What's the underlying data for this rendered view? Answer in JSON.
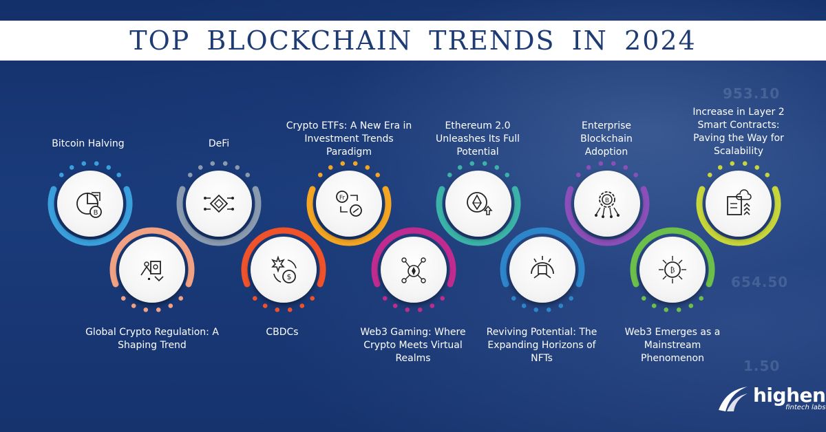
{
  "title": "TOP BLOCKCHAIN TRENDS IN 2024",
  "background_numbers": [
    "953.10",
    "654.50",
    "1.50"
  ],
  "trends": [
    {
      "label": "Bitcoin Halving",
      "icon": "bitcoin-pie-chart-icon",
      "color": "#3aa0dd"
    },
    {
      "label": "Global Crypto Regulation: A Shaping Trend",
      "icon": "regulation-document-icon",
      "color": "#f2a283"
    },
    {
      "label": "DeFi",
      "icon": "decentralized-network-icon",
      "color": "#8a9bb0"
    },
    {
      "label": "CBDCs",
      "icon": "leaf-dollar-exchange-icon",
      "color": "#f0522a"
    },
    {
      "label": "Crypto ETFs: A New Era in Investment Trends Paradigm",
      "icon": "currency-exchange-icon",
      "color": "#f4a623"
    },
    {
      "label": "Web3 Gaming: Where Crypto Meets Virtual Realms",
      "icon": "gaming-network-icon",
      "color": "#c02b8f"
    },
    {
      "label": "Ethereum 2.0 Unleashes Its Full Potential",
      "icon": "ethereum-upgrade-icon",
      "color": "#3bb3a8"
    },
    {
      "label": "Reviving Potential: The Expanding Horizons of NFTs",
      "icon": "nft-hand-icon",
      "color": "#2d86c9"
    },
    {
      "label": "Enterprise Blockchain Adoption",
      "icon": "bitcoin-gear-circuit-icon",
      "color": "#8a4fb8"
    },
    {
      "label": "Web3 Emerges as a Mainstream Phenomenon",
      "icon": "web3-globe-icon",
      "color": "#6cc04a"
    },
    {
      "label": "Increase in Layer 2 Smart Contracts: Paving the Way for Scalability",
      "icon": "cloud-contract-icon",
      "color": "#c7d63a"
    }
  ],
  "brand": {
    "name": "highen",
    "tagline": "fintech labs"
  }
}
